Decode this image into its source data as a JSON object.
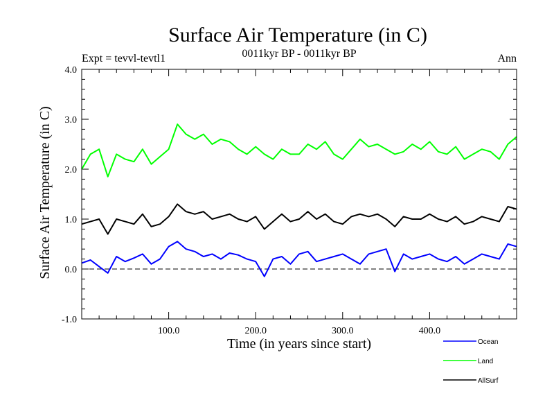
{
  "chart_data": {
    "type": "line",
    "title": "Surface Air Temperature (in C)",
    "subtitle": "0011kyr BP - 0011kyr BP",
    "expt_label": "Expt = tevvl-tevtl1",
    "season_label": "Ann",
    "xlabel": "Time (in years since start)",
    "ylabel": "Surface Air Temperature (in C)",
    "xlim": [
      0,
      500
    ],
    "ylim": [
      -1.0,
      4.0
    ],
    "x_ticks": [
      100,
      200,
      300,
      400
    ],
    "x_tick_labels": [
      "100.0",
      "200.0",
      "300.0",
      "400.0"
    ],
    "y_ticks": [
      -1.0,
      0.0,
      1.0,
      2.0,
      3.0,
      4.0
    ],
    "y_tick_labels": [
      "-1.0",
      "0.0",
      "1.0",
      "2.0",
      "3.0",
      "4.0"
    ],
    "reference_line": 0.0,
    "legend": [
      "Ocean",
      "Land",
      "AllSurf"
    ],
    "x": [
      0,
      10,
      20,
      30,
      40,
      50,
      60,
      70,
      80,
      90,
      100,
      110,
      120,
      130,
      140,
      150,
      160,
      170,
      180,
      190,
      200,
      210,
      220,
      230,
      240,
      250,
      260,
      270,
      280,
      290,
      300,
      310,
      320,
      330,
      340,
      350,
      360,
      370,
      380,
      390,
      400,
      410,
      420,
      430,
      440,
      450,
      460,
      470,
      480,
      490,
      500
    ],
    "series": [
      {
        "name": "Ocean",
        "color": "#0000ff",
        "values": [
          0.12,
          0.18,
          0.05,
          -0.08,
          0.25,
          0.15,
          0.22,
          0.3,
          0.1,
          0.2,
          0.45,
          0.55,
          0.4,
          0.35,
          0.25,
          0.3,
          0.2,
          0.32,
          0.28,
          0.2,
          0.15,
          -0.15,
          0.2,
          0.25,
          0.1,
          0.3,
          0.35,
          0.15,
          0.2,
          0.25,
          0.3,
          0.2,
          0.1,
          0.3,
          0.35,
          0.4,
          -0.05,
          0.3,
          0.2,
          0.25,
          0.3,
          0.2,
          0.15,
          0.25,
          0.1,
          0.2,
          0.3,
          0.25,
          0.2,
          0.5,
          0.45
        ]
      },
      {
        "name": "Land",
        "color": "#00ff00",
        "values": [
          2.0,
          2.3,
          2.4,
          1.85,
          2.3,
          2.2,
          2.15,
          2.4,
          2.1,
          2.25,
          2.4,
          2.9,
          2.7,
          2.6,
          2.7,
          2.5,
          2.6,
          2.55,
          2.4,
          2.3,
          2.45,
          2.3,
          2.2,
          2.4,
          2.3,
          2.3,
          2.5,
          2.4,
          2.55,
          2.3,
          2.2,
          2.4,
          2.6,
          2.45,
          2.5,
          2.4,
          2.3,
          2.35,
          2.5,
          2.4,
          2.55,
          2.35,
          2.3,
          2.45,
          2.2,
          2.3,
          2.4,
          2.35,
          2.2,
          2.5,
          2.65
        ]
      },
      {
        "name": "AllSurf",
        "color": "#000000",
        "values": [
          0.9,
          0.95,
          1.0,
          0.7,
          1.0,
          0.95,
          0.9,
          1.1,
          0.85,
          0.9,
          1.05,
          1.3,
          1.15,
          1.1,
          1.15,
          1.0,
          1.05,
          1.1,
          1.0,
          0.95,
          1.05,
          0.8,
          0.95,
          1.1,
          0.95,
          1.0,
          1.15,
          1.0,
          1.1,
          0.95,
          0.9,
          1.05,
          1.1,
          1.05,
          1.1,
          1.0,
          0.85,
          1.05,
          1.0,
          1.0,
          1.1,
          1.0,
          0.95,
          1.05,
          0.9,
          0.95,
          1.05,
          1.0,
          0.95,
          1.25,
          1.2
        ]
      }
    ]
  }
}
